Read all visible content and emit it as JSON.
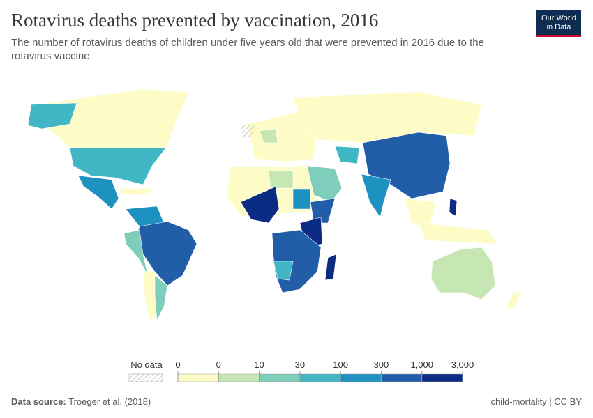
{
  "header": {
    "title": "Rotavirus deaths prevented by vaccination, 2016",
    "subtitle": "The number of rotavirus deaths of children under five years old that were prevented in 2016 due to the rotavirus vaccine.",
    "logo": [
      "Our World",
      "in Data"
    ]
  },
  "legend": {
    "no_data": "No data",
    "ticks": [
      0,
      0,
      10,
      30,
      100,
      300,
      {
        "value": 1000,
        "label": "1,000"
      },
      {
        "value": 3000,
        "label": "3,000"
      }
    ],
    "colors": [
      "#fefcc6",
      "#c6e6b4",
      "#7fcdbb",
      "#41b6c4",
      "#1d91c0",
      "#225ea8",
      "#0c2c84"
    ]
  },
  "footer": {
    "source_label": "Data source:",
    "source": "Troeger et al. (2018)",
    "license": "child-mortality | CC BY"
  }
}
